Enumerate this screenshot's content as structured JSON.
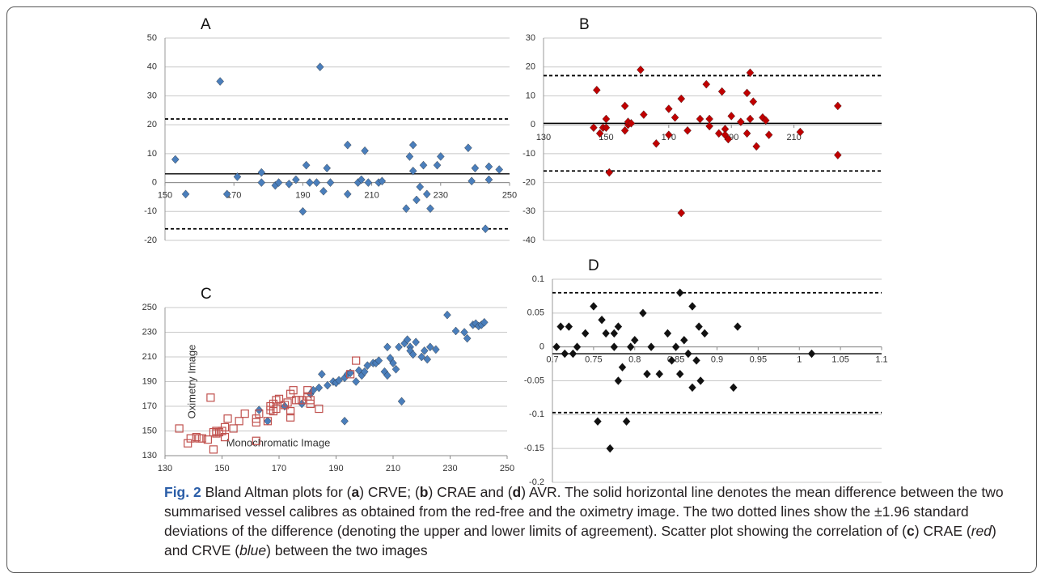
{
  "chart_data": [
    {
      "type": "scatter",
      "title": "A",
      "xlim": [
        150,
        250
      ],
      "xticks": [
        150,
        170,
        190,
        210,
        230,
        250
      ],
      "ylim": [
        -20,
        50
      ],
      "yticks": [
        -20,
        -10,
        0,
        10,
        20,
        30,
        40,
        50
      ],
      "x_axis_crosses": 0,
      "grid": true,
      "reference_lines": [
        {
          "y": 3,
          "style": "solid"
        },
        {
          "y": 22,
          "style": "dashed"
        },
        {
          "y": -16,
          "style": "dashed"
        }
      ],
      "series": [
        {
          "color": "#4a7ebb",
          "marker": "diamond",
          "x": [
            153,
            156,
            166,
            168,
            171,
            178,
            178,
            182,
            183,
            186,
            188,
            190,
            191,
            192,
            194,
            195,
            196,
            197,
            198,
            203,
            203,
            206,
            207,
            208,
            209,
            212,
            213,
            220,
            221,
            222,
            222,
            223,
            224,
            225,
            226,
            227,
            229,
            230,
            238,
            239,
            240,
            243,
            244,
            244,
            247
          ],
          "y": [
            8,
            -4,
            35,
            -4,
            2,
            3.5,
            0,
            -1,
            0,
            -0.5,
            1,
            -10,
            6,
            0,
            0,
            40,
            -3,
            5,
            0,
            -4,
            13,
            0,
            1,
            11,
            0,
            0,
            0.5,
            -9,
            9,
            4,
            13,
            -6,
            -1.5,
            6,
            -4,
            -9,
            6,
            9,
            12,
            0.5,
            5,
            -16,
            1,
            5.5,
            4.5
          ]
        }
      ]
    },
    {
      "type": "scatter",
      "title": "B",
      "xlim": [
        130,
        238
      ],
      "xticks": [
        130,
        150,
        170,
        190,
        210
      ],
      "ylim": [
        -40,
        30
      ],
      "yticks": [
        -40,
        -30,
        -20,
        -10,
        0,
        10,
        20,
        30
      ],
      "x_axis_crosses": 0,
      "grid": true,
      "reference_lines": [
        {
          "y": 0.5,
          "style": "solid"
        },
        {
          "y": 17,
          "style": "dashed"
        },
        {
          "y": -16,
          "style": "dashed"
        }
      ],
      "series": [
        {
          "color": "#c00000",
          "marker": "diamond",
          "x": [
            147,
            146,
            148,
            149,
            150,
            150,
            151,
            156,
            156,
            157,
            157,
            158,
            161,
            162,
            166,
            170,
            170,
            172,
            174,
            174,
            176,
            180,
            182,
            183,
            183,
            186,
            187,
            188,
            188,
            189,
            190,
            193,
            195,
            195,
            196,
            196,
            197,
            198,
            200,
            201,
            202,
            212,
            224,
            224
          ],
          "y": [
            12,
            -1,
            -3,
            -1,
            -1,
            2,
            -16.5,
            6.5,
            -2,
            0,
            1,
            0.5,
            19,
            3.5,
            -6.5,
            5.5,
            -3.5,
            2.5,
            9,
            -30.5,
            -2,
            2,
            14,
            2,
            -0.5,
            -3,
            11.5,
            -1.5,
            -3.5,
            -5,
            3,
            1,
            -3,
            11,
            2,
            18,
            8,
            -7.5,
            2.5,
            1.5,
            -3.5,
            -2.5,
            6.5,
            -10.5
          ]
        }
      ]
    },
    {
      "type": "scatter",
      "title": "C",
      "xlabel": "Monochromatic Image",
      "ylabel": "Oximetry Image",
      "xlim": [
        130,
        250
      ],
      "xticks": [
        130,
        150,
        170,
        190,
        210,
        230,
        250
      ],
      "ylim": [
        130,
        250
      ],
      "yticks": [
        130,
        150,
        170,
        190,
        210,
        230,
        250
      ],
      "grid": true,
      "series": [
        {
          "color": "#4a7ebb",
          "marker": "diamond",
          "x": [
            163,
            166,
            172,
            178,
            181,
            182,
            184,
            185,
            187,
            189,
            190,
            191,
            193,
            193,
            194,
            195,
            197,
            198,
            199,
            200,
            201,
            203,
            204,
            205,
            207,
            208,
            208,
            209,
            210,
            211,
            212,
            213,
            214,
            215,
            216,
            216,
            217,
            218,
            220,
            221,
            222,
            223,
            225,
            229,
            232,
            235,
            236,
            238,
            239,
            240,
            241,
            242
          ],
          "y": [
            167,
            158,
            170,
            172,
            180,
            183,
            185,
            196,
            187,
            190,
            189,
            191,
            193,
            158,
            196,
            197,
            190,
            199,
            195,
            198,
            203,
            205,
            205,
            207,
            198,
            218,
            195,
            209,
            205,
            200,
            218,
            174,
            221,
            224,
            218,
            215,
            212,
            222,
            210,
            215,
            208,
            218,
            216,
            244,
            231,
            230,
            225,
            236,
            237,
            235,
            236,
            238
          ]
        },
        {
          "color": "#c0504d",
          "marker": "square-open",
          "x": [
            135,
            138,
            139,
            141,
            142,
            143,
            145,
            146,
            147,
            147,
            148,
            148,
            149,
            150,
            151,
            151,
            152,
            154,
            156,
            158,
            162,
            162,
            162,
            163,
            166,
            167,
            167,
            168,
            168,
            169,
            169,
            170,
            172,
            173,
            174,
            174,
            174,
            175,
            176,
            177,
            178,
            180,
            180,
            181,
            181,
            184,
            195,
            197
          ],
          "y": [
            152,
            140,
            144,
            145,
            144,
            144,
            143,
            177,
            135,
            149,
            150,
            148,
            149,
            150,
            145,
            153,
            160,
            152,
            158,
            164,
            142,
            157,
            160,
            164,
            158,
            170,
            167,
            166,
            172,
            168,
            175,
            176,
            171,
            173,
            166,
            180,
            161,
            183,
            175,
            175,
            175,
            183,
            178,
            175,
            172,
            168,
            196,
            207
          ]
        }
      ]
    },
    {
      "type": "scatter",
      "title": "D",
      "xlim": [
        0.7,
        1.1
      ],
      "xticks": [
        0.7,
        0.75,
        0.8,
        0.85,
        0.9,
        0.95,
        1,
        1.05,
        1.1
      ],
      "ylim": [
        -0.2,
        0.1
      ],
      "yticks": [
        -0.2,
        -0.15,
        -0.1,
        -0.05,
        0,
        0.05,
        0.1
      ],
      "x_axis_crosses": 0,
      "grid": true,
      "reference_lines": [
        {
          "y": -0.01,
          "style": "solid"
        },
        {
          "y": 0.08,
          "style": "dashed"
        },
        {
          "y": -0.097,
          "style": "dashed"
        }
      ],
      "series": [
        {
          "color": "#111111",
          "marker": "diamond",
          "x": [
            0.705,
            0.71,
            0.715,
            0.72,
            0.725,
            0.73,
            0.74,
            0.75,
            0.755,
            0.76,
            0.765,
            0.77,
            0.775,
            0.775,
            0.78,
            0.78,
            0.785,
            0.79,
            0.795,
            0.8,
            0.81,
            0.815,
            0.82,
            0.83,
            0.84,
            0.845,
            0.85,
            0.855,
            0.855,
            0.86,
            0.865,
            0.87,
            0.87,
            0.875,
            0.878,
            0.88,
            0.885,
            0.92,
            0.925,
            1.015
          ],
          "y": [
            0,
            0.03,
            -0.01,
            0.03,
            -0.01,
            0,
            0.02,
            0.06,
            -0.11,
            0.04,
            0.02,
            -0.15,
            0.02,
            0,
            0.03,
            -0.05,
            -0.03,
            -0.11,
            0,
            0.01,
            0.05,
            -0.04,
            0,
            -0.04,
            0.02,
            -0.02,
            0,
            0.08,
            -0.04,
            0.01,
            -0.01,
            0.06,
            -0.06,
            -0.02,
            0.03,
            -0.05,
            0.02,
            -0.06,
            0.03,
            -0.01
          ]
        }
      ]
    }
  ],
  "caption": {
    "runs": [
      {
        "text": "Fig. 2",
        "style": "bold"
      },
      {
        "text": " Bland Altman plots for (",
        "style": "normal"
      },
      {
        "text": "a",
        "style": "bold"
      },
      {
        "text": ") CRVE; (",
        "style": "normal"
      },
      {
        "text": "b",
        "style": "bold"
      },
      {
        "text": ") CRAE and (",
        "style": "normal"
      },
      {
        "text": "d",
        "style": "bold"
      },
      {
        "text": ") AVR. The solid horizontal line denotes the mean difference between the two summarised vessel calibres as obtained from the red-free and the oximetry image. The two dotted lines show the ±1.96 standard deviations of the difference (denoting the upper and lower limits of agreement). Scatter plot showing the correlation of (",
        "style": "normal"
      },
      {
        "text": "c",
        "style": "bold"
      },
      {
        "text": ") CRAE (",
        "style": "normal"
      },
      {
        "text": "red",
        "style": "italic"
      },
      {
        "text": ") and CRVE (",
        "style": "normal"
      },
      {
        "text": "blue",
        "style": "italic"
      },
      {
        "text": ") between the two images",
        "style": "normal"
      }
    ]
  }
}
